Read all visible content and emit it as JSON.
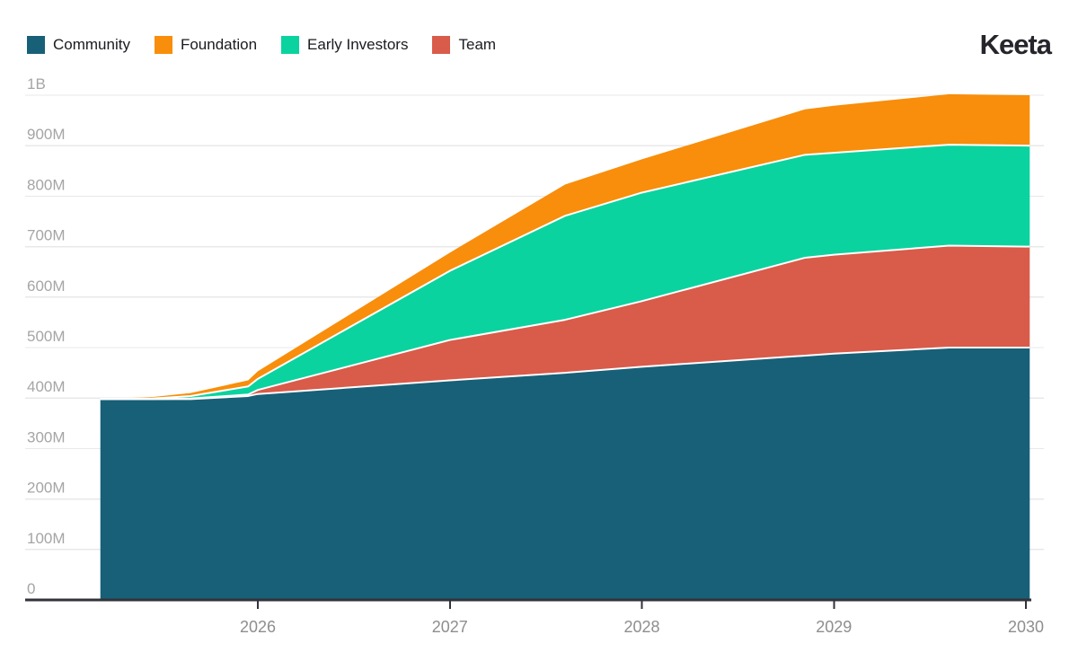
{
  "logo": {
    "text": "Keeta"
  },
  "legend": {
    "items": [
      {
        "label": "Community",
        "color": "#176078"
      },
      {
        "label": "Foundation",
        "color": "#F88E0B"
      },
      {
        "label": "Early Investors",
        "color": "#0BD3A0"
      },
      {
        "label": "Team",
        "color": "#D95B4A"
      }
    ]
  },
  "chart_data": {
    "type": "area",
    "stacked": true,
    "title": "",
    "xlabel": "",
    "ylabel": "",
    "unit": "tokens (millions)",
    "ylim_millions": [
      0,
      1000
    ],
    "x_range_years": [
      2025.18,
      2030.02
    ],
    "grid": true,
    "legend_position": "top-left",
    "x_years": [
      2025.18,
      2025.45,
      2025.65,
      2025.95,
      2026,
      2027,
      2027.6,
      2028,
      2028.85,
      2029,
      2029.6,
      2030.02
    ],
    "series": [
      {
        "name": "Community",
        "color": "#176078",
        "values_millions": [
          398,
          398,
          398,
          404,
          408,
          435,
          450,
          462,
          484,
          488,
          500,
          500
        ]
      },
      {
        "name": "Team",
        "color": "#D95B4A",
        "values_millions": [
          0,
          0,
          1,
          3,
          8,
          80,
          105,
          130,
          194,
          196,
          202,
          200
        ]
      },
      {
        "name": "Early Investors",
        "color": "#0BD3A0",
        "values_millions": [
          0,
          1,
          5,
          16,
          22,
          137,
          206,
          215,
          204,
          202,
          200,
          200
        ]
      },
      {
        "name": "Foundation",
        "color": "#F88E0B",
        "values_millions": [
          0,
          3,
          6,
          12,
          15,
          36,
          62,
          66,
          90,
          93,
          100,
          100
        ]
      }
    ],
    "totals_at_end_millions": {
      "Community": 500,
      "Team": 200,
      "Early Investors": 200,
      "Foundation": 100,
      "total": 1000
    },
    "y_ticks": [
      {
        "value_millions": 0,
        "label": "0"
      },
      {
        "value_millions": 100,
        "label": "100M"
      },
      {
        "value_millions": 200,
        "label": "200M"
      },
      {
        "value_millions": 300,
        "label": "300M"
      },
      {
        "value_millions": 400,
        "label": "400M"
      },
      {
        "value_millions": 500,
        "label": "500M"
      },
      {
        "value_millions": 600,
        "label": "600M"
      },
      {
        "value_millions": 700,
        "label": "700M"
      },
      {
        "value_millions": 800,
        "label": "800M"
      },
      {
        "value_millions": 900,
        "label": "900M"
      },
      {
        "value_millions": 1000,
        "label": "1B"
      }
    ],
    "x_ticks": [
      {
        "year": 2026,
        "label": "2026"
      },
      {
        "year": 2027,
        "label": "2027"
      },
      {
        "year": 2028,
        "label": "2028"
      },
      {
        "year": 2029,
        "label": "2029"
      },
      {
        "year": 2030,
        "label": "2030"
      }
    ],
    "colors": {
      "separator": "#FFFFFF",
      "grid": "#E8E8E8",
      "axis": "#33323A",
      "x_tick_label": "#8E8E8E",
      "y_tick_label": "#A5A5A5"
    }
  }
}
